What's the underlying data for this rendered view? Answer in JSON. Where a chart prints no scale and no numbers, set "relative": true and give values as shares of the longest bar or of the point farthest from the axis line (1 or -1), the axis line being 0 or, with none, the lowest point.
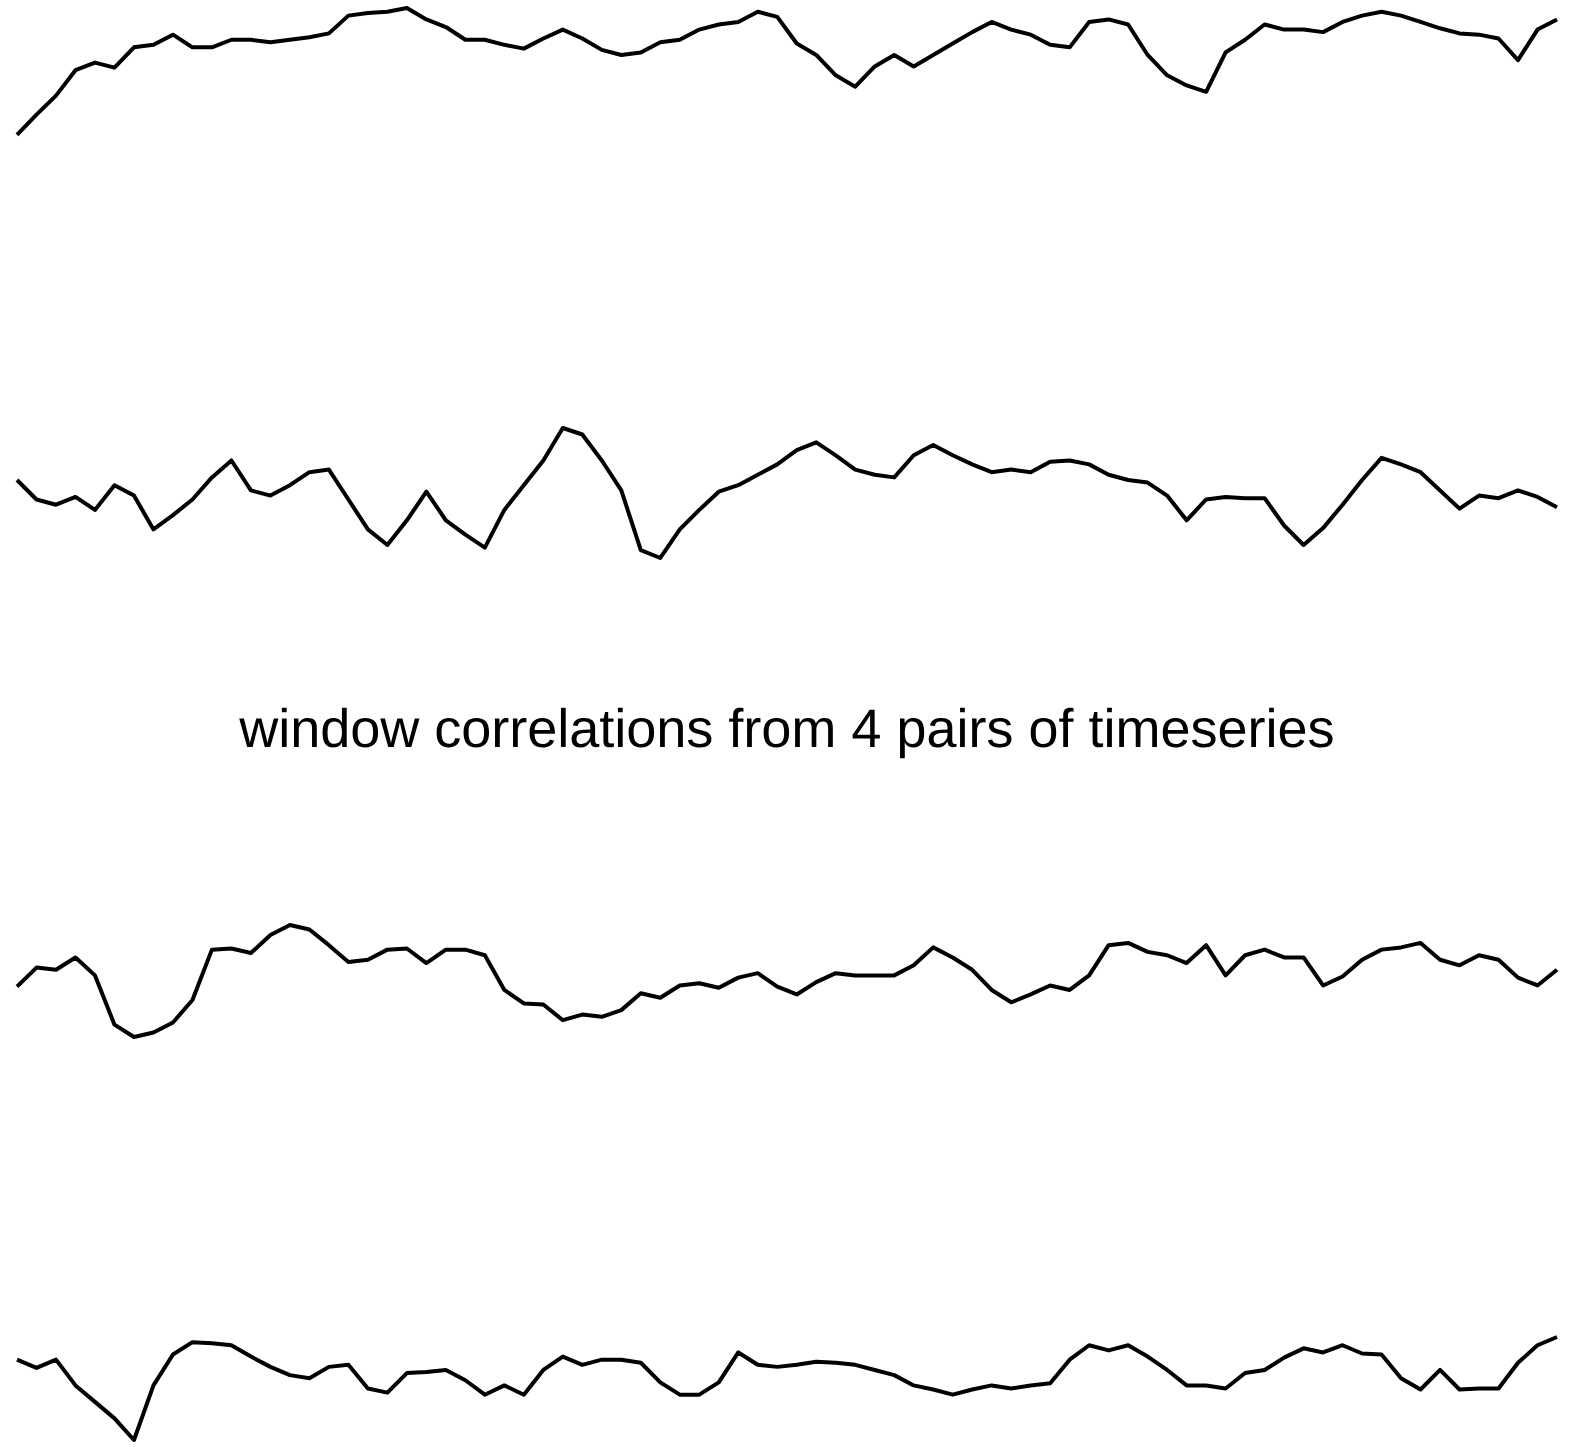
{
  "chart_data": [
    {
      "type": "line",
      "relative": true,
      "color": "#000000",
      "categories": [
        null,
        null,
        null,
        null,
        null,
        null,
        null,
        null,
        null,
        null,
        null,
        null,
        null,
        null,
        null,
        null,
        null,
        null,
        null,
        null,
        null,
        null,
        null,
        null,
        null,
        null,
        null,
        null,
        null,
        null,
        null,
        null,
        null,
        null,
        null,
        null,
        null,
        null,
        null,
        null,
        null,
        null,
        null,
        null,
        null,
        null,
        null,
        null,
        null,
        null,
        null,
        null,
        null,
        null,
        null,
        null,
        null,
        null,
        null,
        null,
        null,
        null,
        null,
        null,
        null,
        null,
        null,
        null,
        null,
        null,
        null,
        null,
        null,
        null,
        null,
        null,
        null,
        null,
        null,
        null
      ],
      "values": [
        0,
        0.16,
        0.31,
        0.51,
        0.57,
        0.53,
        0.69,
        0.71,
        0.79,
        0.69,
        0.69,
        0.75,
        0.75,
        0.73,
        0.75,
        0.77,
        0.8,
        0.94,
        0.96,
        0.97,
        1,
        0.91,
        0.85,
        0.75,
        0.75,
        0.71,
        0.68,
        0.76,
        0.83,
        0.76,
        0.67,
        0.63,
        0.65,
        0.73,
        0.75,
        0.83,
        0.87,
        0.89,
        0.97,
        0.93,
        0.72,
        0.63,
        0.47,
        0.38,
        0.54,
        0.63,
        0.54,
        0.63,
        0.72,
        0.81,
        0.89,
        0.83,
        0.79,
        0.71,
        0.69,
        0.89,
        0.91,
        0.87,
        0.63,
        0.47,
        0.39,
        0.34,
        0.65,
        0.75,
        0.87,
        0.83,
        0.83,
        0.81,
        0.89,
        0.94,
        0.97,
        0.94,
        0.89,
        0.84,
        0.8,
        0.79,
        0.76,
        0.59,
        0.83,
        0.91
      ]
    },
    {
      "type": "line",
      "relative": true,
      "color": "#000000",
      "categories": [
        null,
        null,
        null,
        null,
        null,
        null,
        null,
        null,
        null,
        null,
        null,
        null,
        null,
        null,
        null,
        null,
        null,
        null,
        null,
        null,
        null,
        null,
        null,
        null,
        null,
        null,
        null,
        null,
        null,
        null,
        null,
        null,
        null,
        null,
        null,
        null,
        null,
        null,
        null,
        null,
        null,
        null,
        null,
        null,
        null,
        null,
        null,
        null,
        null,
        null,
        null,
        null,
        null,
        null,
        null,
        null,
        null,
        null,
        null,
        null,
        null,
        null,
        null,
        null,
        null,
        null,
        null,
        null,
        null,
        null,
        null,
        null,
        null,
        null,
        null,
        null,
        null,
        null,
        null,
        null
      ],
      "values": [
        0.6,
        0.45,
        0.41,
        0.47,
        0.37,
        0.56,
        0.48,
        0.22,
        0.33,
        0.45,
        0.62,
        0.75,
        0.52,
        0.48,
        0.56,
        0.66,
        0.68,
        0.45,
        0.22,
        0.1,
        0.29,
        0.51,
        0.29,
        0.18,
        0.08,
        0.37,
        0.56,
        0.75,
        1,
        0.95,
        0.75,
        0.52,
        0.06,
        0,
        0.22,
        0.37,
        0.51,
        0.56,
        0.64,
        0.72,
        0.83,
        0.89,
        0.79,
        0.68,
        0.64,
        0.62,
        0.79,
        0.87,
        0.79,
        0.72,
        0.66,
        0.68,
        0.66,
        0.74,
        0.75,
        0.72,
        0.64,
        0.6,
        0.58,
        0.48,
        0.29,
        0.45,
        0.47,
        0.46,
        0.46,
        0.25,
        0.1,
        0.23,
        0.41,
        0.6,
        0.77,
        0.72,
        0.66,
        0.52,
        0.38,
        0.48,
        0.46,
        0.52,
        0.47,
        0.39
      ]
    },
    {
      "type": "line",
      "relative": true,
      "color": "#000000",
      "title": "window correlations from 4 pairs of timeseries",
      "categories": [
        null,
        null,
        null,
        null,
        null,
        null,
        null,
        null,
        null,
        null,
        null,
        null,
        null,
        null,
        null,
        null,
        null,
        null,
        null,
        null,
        null,
        null,
        null,
        null,
        null,
        null,
        null,
        null,
        null,
        null,
        null,
        null,
        null,
        null,
        null,
        null,
        null,
        null,
        null,
        null,
        null,
        null,
        null,
        null,
        null,
        null,
        null,
        null,
        null,
        null,
        null,
        null,
        null,
        null,
        null,
        null,
        null,
        null,
        null,
        null,
        null,
        null,
        null,
        null,
        null,
        null,
        null,
        null,
        null,
        null,
        null,
        null,
        null,
        null,
        null,
        null,
        null,
        null,
        null,
        null
      ],
      "values": [
        0.45,
        0.62,
        0.6,
        0.71,
        0.55,
        0.11,
        0,
        0.04,
        0.13,
        0.33,
        0.78,
        0.79,
        0.75,
        0.91,
        1,
        0.96,
        0.82,
        0.67,
        0.69,
        0.78,
        0.79,
        0.66,
        0.78,
        0.78,
        0.73,
        0.42,
        0.3,
        0.29,
        0.15,
        0.2,
        0.18,
        0.24,
        0.39,
        0.35,
        0.46,
        0.48,
        0.44,
        0.53,
        0.57,
        0.45,
        0.38,
        0.49,
        0.57,
        0.55,
        0.55,
        0.55,
        0.64,
        0.8,
        0.71,
        0.6,
        0.42,
        0.31,
        0.38,
        0.46,
        0.42,
        0.55,
        0.82,
        0.84,
        0.76,
        0.73,
        0.66,
        0.82,
        0.55,
        0.73,
        0.78,
        0.71,
        0.71,
        0.46,
        0.54,
        0.69,
        0.78,
        0.8,
        0.84,
        0.69,
        0.64,
        0.73,
        0.69,
        0.53,
        0.46,
        0.6
      ]
    },
    {
      "type": "line",
      "relative": true,
      "color": "#000000",
      "categories": [
        null,
        null,
        null,
        null,
        null,
        null,
        null,
        null,
        null,
        null,
        null,
        null,
        null,
        null,
        null,
        null,
        null,
        null,
        null,
        null,
        null,
        null,
        null,
        null,
        null,
        null,
        null,
        null,
        null,
        null,
        null,
        null,
        null,
        null,
        null,
        null,
        null,
        null,
        null,
        null,
        null,
        null,
        null,
        null,
        null,
        null,
        null,
        null,
        null,
        null,
        null,
        null,
        null,
        null,
        null,
        null,
        null,
        null,
        null,
        null,
        null,
        null,
        null,
        null,
        null,
        null,
        null,
        null,
        null,
        null,
        null,
        null,
        null,
        null,
        null,
        null,
        null,
        null,
        null,
        null
      ],
      "values": [
        0.78,
        0.7,
        0.78,
        0.53,
        0.37,
        0.21,
        0,
        0.53,
        0.83,
        0.95,
        0.94,
        0.92,
        0.81,
        0.71,
        0.63,
        0.6,
        0.71,
        0.73,
        0.5,
        0.46,
        0.65,
        0.66,
        0.68,
        0.58,
        0.44,
        0.53,
        0.44,
        0.68,
        0.81,
        0.73,
        0.78,
        0.78,
        0.75,
        0.56,
        0.44,
        0.44,
        0.56,
        0.85,
        0.73,
        0.71,
        0.73,
        0.76,
        0.75,
        0.73,
        0.68,
        0.63,
        0.53,
        0.49,
        0.44,
        0.49,
        0.53,
        0.5,
        0.53,
        0.55,
        0.78,
        0.92,
        0.87,
        0.92,
        0.81,
        0.68,
        0.53,
        0.53,
        0.5,
        0.65,
        0.68,
        0.8,
        0.89,
        0.85,
        0.92,
        0.84,
        0.83,
        0.6,
        0.49,
        0.68,
        0.49,
        0.5,
        0.5,
        0.75,
        0.92,
        1
      ]
    }
  ]
}
